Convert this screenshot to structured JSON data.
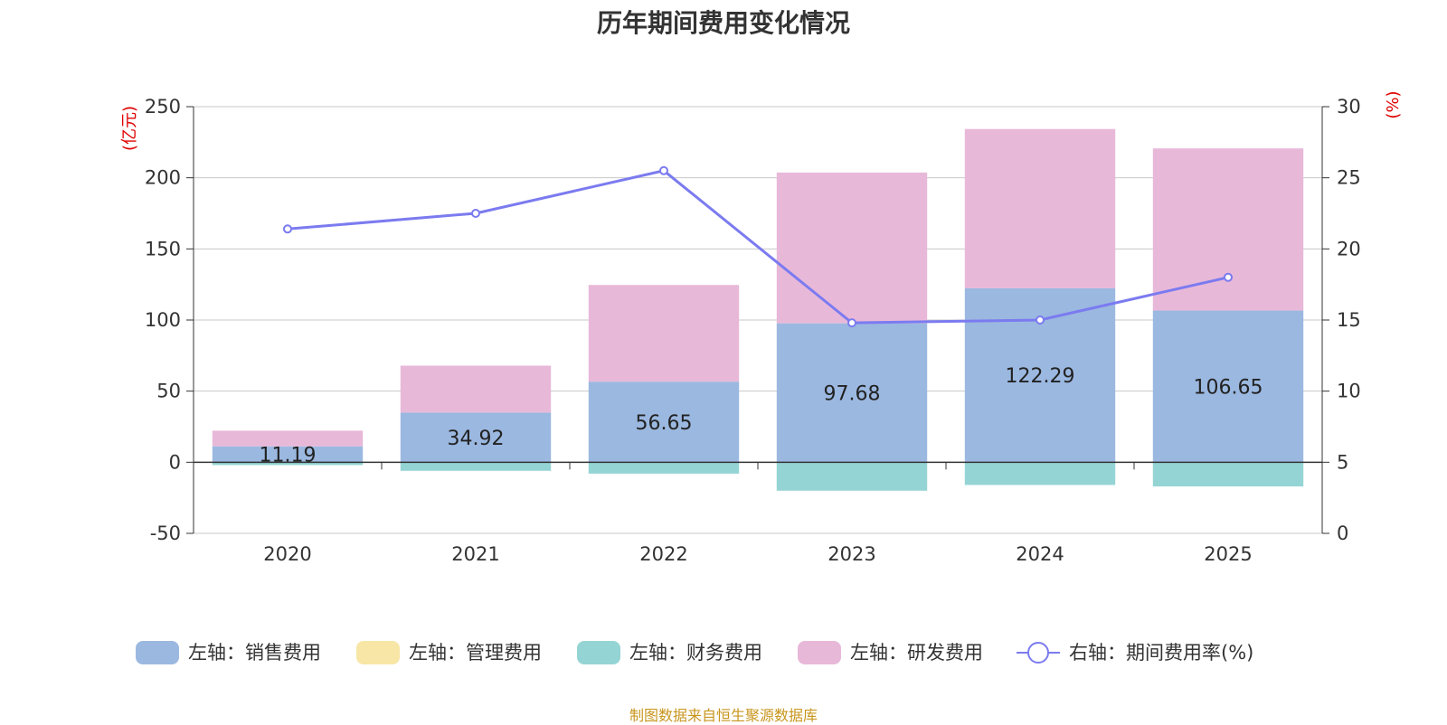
{
  "chart_data": {
    "type": "bar",
    "title": "历年期间费用变化情况",
    "categories": [
      "2020",
      "2021",
      "2022",
      "2023",
      "2024",
      "2025"
    ],
    "series": [
      {
        "name": "左轴：销售费用",
        "axis": "left",
        "color": "#9bb8e0",
        "values": [
          11.19,
          34.92,
          56.65,
          97.68,
          122.29,
          106.65
        ],
        "labels": [
          "11.19",
          "34.92",
          "56.65",
          "97.68",
          "122.29",
          "106.65"
        ]
      },
      {
        "name": "左轴：管理费用",
        "axis": "left",
        "color": "#f7e6a6",
        "values": [
          0,
          0,
          0,
          0,
          0,
          0
        ]
      },
      {
        "name": "左轴：财务费用",
        "axis": "left",
        "color": "#95d4d4",
        "values": [
          -2,
          -6,
          -8,
          -20,
          -16,
          -17
        ]
      },
      {
        "name": "左轴：研发费用",
        "axis": "left",
        "color": "#e8b8d9",
        "values": [
          11,
          33,
          68,
          106,
          112,
          114
        ]
      },
      {
        "name": "右轴：期间费用率(%)",
        "axis": "right",
        "type": "line",
        "color": "#7b7bf0",
        "values": [
          21.4,
          22.5,
          25.5,
          14.8,
          15.0,
          18.0
        ]
      }
    ],
    "left_axis": {
      "label": "(亿元)",
      "ylim": [
        -50,
        250
      ],
      "ticks": [
        "-50",
        "0",
        "50",
        "100",
        "150",
        "200",
        "250"
      ]
    },
    "right_axis": {
      "label": "(%)",
      "ylim": [
        0,
        30
      ],
      "ticks": [
        "0",
        "5",
        "10",
        "15",
        "20",
        "25",
        "30"
      ]
    },
    "grid": true,
    "legend_position": "bottom"
  },
  "source_note": "制图数据来自恒生聚源数据库"
}
